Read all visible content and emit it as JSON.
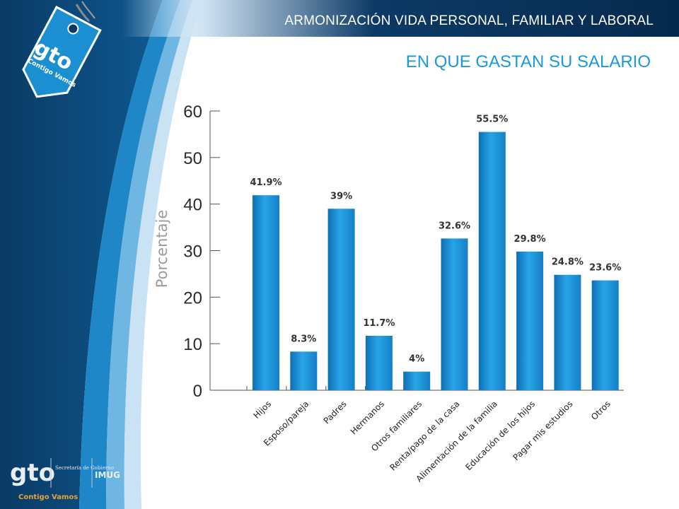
{
  "header": {
    "title": "ARMONIZACIÓN VIDA PERSONAL, FAMILIAR Y LABORAL",
    "subtitle": "EN QUE  GASTAN SU SALARIO"
  },
  "logos": {
    "tag_main": "gto",
    "tag_sub": "Contigo Vamos",
    "bottom_main": "gto",
    "bottom_secretaria": "Secretaría de Gobierno",
    "bottom_imug": "IMUG",
    "bottom_sub": "Contigo Vamos"
  },
  "colors": {
    "navy": "#0a3a64",
    "bar": "#1a8fd6",
    "subtitle": "#1a9ad6"
  },
  "chart_data": {
    "type": "bar",
    "categories": [
      "Hijos",
      "Esposo/pareja",
      "Padres",
      "Hermanos",
      "Otros familiares",
      "Renta/pago de la casa",
      "Alimentación de la familia",
      "Educación de los hijos",
      "Pagar mis estudios",
      "Otros"
    ],
    "values": [
      41.9,
      8.3,
      39,
      11.7,
      4,
      32.6,
      55.5,
      29.8,
      24.8,
      23.6
    ],
    "value_labels": [
      "41.9%",
      "8.3%",
      "39%",
      "11.7%",
      "4%",
      "32.6%",
      "55.5%",
      "29.8%",
      "24.8%",
      "23.6%"
    ],
    "title": "",
    "xlabel": "",
    "ylabel": "Porcentaje",
    "ylim": [
      0,
      60
    ],
    "yticks": [
      0,
      10,
      20,
      30,
      40,
      50,
      60
    ],
    "grid": false,
    "legend": "none"
  }
}
